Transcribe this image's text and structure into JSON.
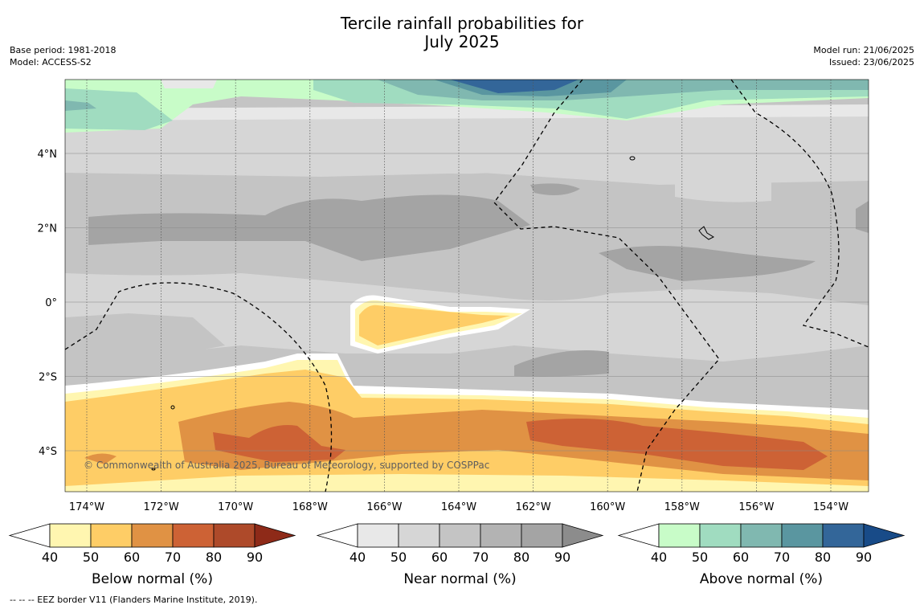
{
  "header": {
    "title_line1": "Tercile rainfall probabilities for",
    "title_line2": "July 2025",
    "base_period": "Base period: 1981-2018",
    "model": "Model: ACCESS-S2",
    "model_run": "Model run: 21/06/2025",
    "issued": "Issued: 23/06/2025"
  },
  "map": {
    "copyright": "© Commonwealth of Australia 2025, Bureau of Meteorology, supported by COSPPac",
    "lon_ticks": [
      "174°W",
      "172°W",
      "170°W",
      "168°W",
      "166°W",
      "164°W",
      "162°W",
      "160°W",
      "158°W",
      "156°W",
      "154°W"
    ],
    "lat_ticks": [
      "4°N",
      "2°N",
      "0°",
      "2°S",
      "4°S"
    ]
  },
  "legends": [
    {
      "label": "Below normal (%)",
      "ticks": [
        "40",
        "50",
        "60",
        "70",
        "80",
        "90"
      ],
      "colors": [
        "#fff6b0",
        "#fecd66",
        "#e09244",
        "#cd6235",
        "#ae4a2a",
        "#8e2a18"
      ]
    },
    {
      "label": "Near normal (%)",
      "ticks": [
        "40",
        "50",
        "60",
        "70",
        "80",
        "90"
      ],
      "colors": [
        "#e8e8e8",
        "#d6d6d6",
        "#c4c4c4",
        "#b3b3b3",
        "#a4a4a4",
        "#8c8c8c"
      ]
    },
    {
      "label": "Above normal (%)",
      "ticks": [
        "40",
        "50",
        "60",
        "70",
        "80",
        "90"
      ],
      "colors": [
        "#c8fcc8",
        "#a0dcc0",
        "#80b8b0",
        "#5a96a0",
        "#336699",
        "#184b88"
      ]
    }
  ],
  "footer": "--  --  -- EEZ border V11 (Flanders Marine Institute, 2019)."
}
